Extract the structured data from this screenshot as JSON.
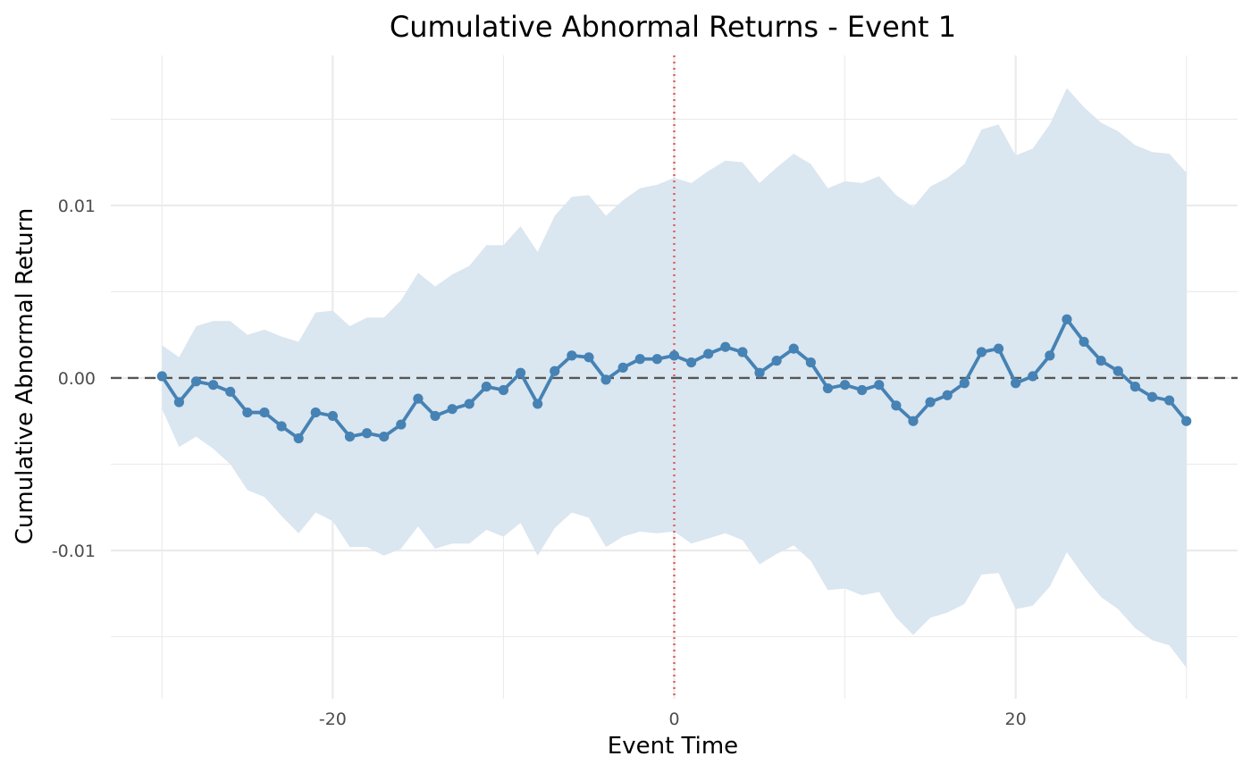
{
  "chart_data": {
    "type": "line",
    "title": "Cumulative Abnormal Returns - Event 1",
    "xlabel": "Event Time",
    "ylabel": "Cumulative Abnormal Return",
    "xlim": [
      -33,
      33
    ],
    "ylim": [
      -0.0186,
      0.0187
    ],
    "x_ticks": [
      -20,
      0,
      20
    ],
    "x_tick_labels": [
      "-20",
      "0",
      "20"
    ],
    "y_ticks": [
      -0.01,
      0.0,
      0.01
    ],
    "y_tick_labels": [
      "-0.01",
      "0.00",
      "0.01"
    ],
    "grid": true,
    "legend": "none",
    "series": [
      {
        "values": [
          0.0001,
          -0.0014,
          -0.0002,
          -0.0004,
          -0.0008,
          -0.002,
          -0.002,
          -0.0028,
          -0.0035,
          -0.002,
          -0.0022,
          -0.0034,
          -0.0032,
          -0.0034,
          -0.0027,
          -0.0012,
          -0.0022,
          -0.0018,
          -0.0015,
          -0.0005,
          -0.0007,
          0.0003,
          -0.0015,
          0.0004,
          0.0013,
          0.0012,
          -0.0001,
          0.0006,
          0.0011,
          0.0011,
          0.0013,
          0.0009,
          0.0014,
          0.0018,
          0.0015,
          0.0003,
          0.001,
          0.0017,
          0.0009,
          -0.0006,
          -0.0004,
          -0.0007,
          -0.0004,
          -0.0016,
          -0.0025,
          -0.0014,
          -0.001,
          -0.0003,
          0.0015,
          0.0017,
          -0.0003,
          0.0001,
          0.0013,
          0.0034,
          0.0021,
          0.001,
          0.0004,
          -0.0005,
          -0.0011,
          -0.0013,
          -0.0025
        ],
        "lower": [
          -0.0018,
          -0.004,
          -0.0034,
          -0.0041,
          -0.005,
          -0.0065,
          -0.0069,
          -0.008,
          -0.009,
          -0.0078,
          -0.0083,
          -0.0098,
          -0.0098,
          -0.0103,
          -0.0099,
          -0.0086,
          -0.0099,
          -0.0096,
          -0.0096,
          -0.0088,
          -0.0092,
          -0.0084,
          -0.0103,
          -0.0087,
          -0.0078,
          -0.0081,
          -0.0098,
          -0.0092,
          -0.0089,
          -0.009,
          -0.0089,
          -0.0096,
          -0.0093,
          -0.009,
          -0.0094,
          -0.0108,
          -0.0102,
          -0.0097,
          -0.0106,
          -0.0123,
          -0.0122,
          -0.0126,
          -0.0124,
          -0.0139,
          -0.0149,
          -0.0139,
          -0.0136,
          -0.0131,
          -0.0114,
          -0.0113,
          -0.0134,
          -0.0132,
          -0.0121,
          -0.0101,
          -0.0115,
          -0.0127,
          -0.0134,
          -0.0145,
          -0.0152,
          -0.0155,
          -0.0168
        ],
        "upper": [
          0.0019,
          0.0012,
          0.003,
          0.0033,
          0.0033,
          0.0025,
          0.0028,
          0.0024,
          0.0021,
          0.0038,
          0.0039,
          0.003,
          0.0035,
          0.0035,
          0.0045,
          0.0061,
          0.0053,
          0.006,
          0.0065,
          0.0077,
          0.0077,
          0.0088,
          0.0073,
          0.0094,
          0.0105,
          0.0106,
          0.0094,
          0.0103,
          0.011,
          0.0112,
          0.0116,
          0.0113,
          0.012,
          0.0126,
          0.0125,
          0.0113,
          0.0122,
          0.013,
          0.0124,
          0.011,
          0.0114,
          0.0113,
          0.0117,
          0.0106,
          0.0099,
          0.0111,
          0.0116,
          0.0124,
          0.0144,
          0.0147,
          0.0129,
          0.0133,
          0.0147,
          0.0168,
          0.0157,
          0.0148,
          0.0143,
          0.0135,
          0.0131,
          0.013,
          0.0119
        ]
      }
    ],
    "reference_lines": [
      {
        "axis": "y",
        "value": 0,
        "style": "dashed",
        "color": "#555555"
      },
      {
        "axis": "x",
        "value": 0,
        "style": "dotted",
        "color": "#e05a5a"
      }
    ],
    "colors": {
      "line": "#4682b4",
      "band": "#dae6f0",
      "grid": "#ebebeb"
    }
  }
}
